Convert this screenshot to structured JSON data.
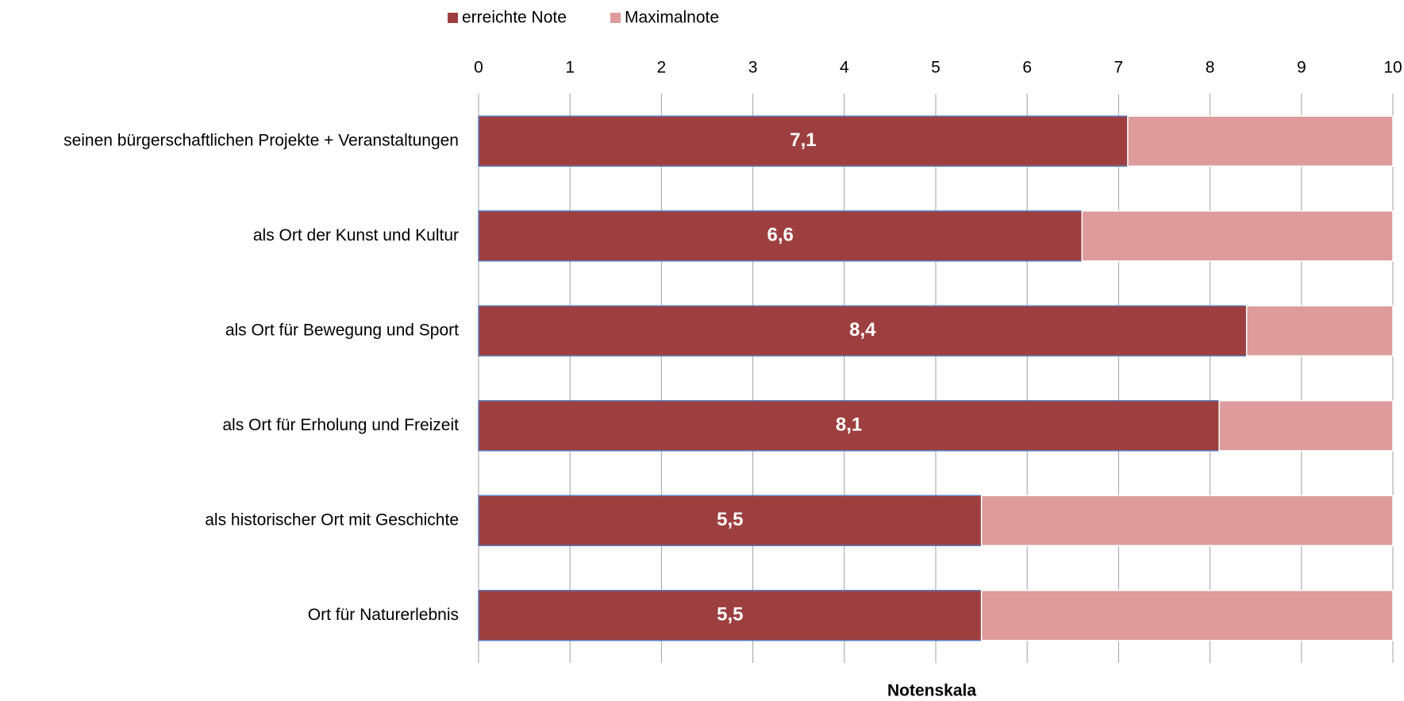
{
  "chart_data": {
    "type": "stacked_bar_horizontal",
    "xlabel": "Notenskala",
    "categories": [
      "seinen bürgerschaftlichen Projekte + Veranstaltungen",
      "als Ort der Kunst und Kultur",
      "als Ort für Bewegung und Sport",
      "als Ort für Erholung und Freizeit",
      "als historischer Ort mit Geschichte",
      "Ort für Naturerlebnis"
    ],
    "series": [
      {
        "name": "erreichte Note",
        "color": "#9e3f3f",
        "values": [
          7.1,
          6.6,
          8.4,
          8.1,
          5.5,
          5.5
        ],
        "value_labels": [
          "7,1",
          "6,6",
          "8,4",
          "8,1",
          "5,5",
          "5,5"
        ]
      },
      {
        "name": "Maximalnote",
        "color": "#dd9b9b",
        "values": [
          2.9,
          3.4,
          1.6,
          1.9,
          4.5,
          4.5
        ]
      }
    ],
    "xlim": [
      0,
      10
    ],
    "xticks": [
      0,
      1,
      2,
      3,
      4,
      5,
      6,
      7,
      8,
      9,
      10
    ],
    "grid": true,
    "legend": "top"
  }
}
